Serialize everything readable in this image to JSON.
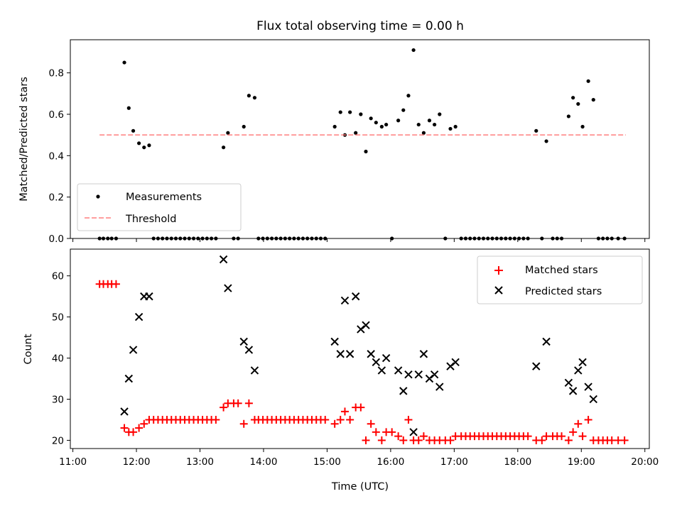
{
  "figure": {
    "title": "Flux total observing time = 0.00 h",
    "xlabel": "Time (UTC)",
    "x_ticks": [
      "11:00",
      "12:00",
      "13:00",
      "14:00",
      "15:00",
      "16:00",
      "17:00",
      "18:00",
      "19:00",
      "20:00"
    ]
  },
  "chart_data": [
    {
      "type": "scatter",
      "name": "top",
      "ylabel": "Matched/Predicted stars",
      "xlim": [
        10.96,
        20.07
      ],
      "ylim": [
        0.0,
        0.96
      ],
      "y_ticks": [
        "0.0",
        "0.2",
        "0.4",
        "0.6",
        "0.8"
      ],
      "y_tick_values": [
        0.0,
        0.2,
        0.4,
        0.6,
        0.8
      ],
      "grid": false,
      "legend": {
        "position": "lower-left",
        "entries": [
          "Measurements",
          "Threshold"
        ]
      },
      "threshold": {
        "name": "Threshold",
        "value": 0.5,
        "x": [
          11.42,
          19.7
        ],
        "color": "#ff7f7f"
      },
      "series": [
        {
          "name": "Measurements",
          "color": "#000000",
          "points": [
            [
              11.42,
              0.0
            ],
            [
              11.48,
              0.0
            ],
            [
              11.55,
              0.0
            ],
            [
              11.61,
              0.0
            ],
            [
              11.68,
              0.0
            ],
            [
              11.81,
              0.85
            ],
            [
              11.88,
              0.63
            ],
            [
              11.95,
              0.52
            ],
            [
              12.04,
              0.46
            ],
            [
              12.12,
              0.44
            ],
            [
              12.2,
              0.45
            ],
            [
              12.27,
              0.0
            ],
            [
              12.34,
              0.0
            ],
            [
              12.41,
              0.0
            ],
            [
              12.48,
              0.0
            ],
            [
              12.55,
              0.0
            ],
            [
              12.62,
              0.0
            ],
            [
              12.69,
              0.0
            ],
            [
              12.76,
              0.0
            ],
            [
              12.83,
              0.0
            ],
            [
              12.9,
              0.0
            ],
            [
              12.97,
              0.0
            ],
            [
              13.04,
              0.0
            ],
            [
              13.11,
              0.0
            ],
            [
              13.18,
              0.0
            ],
            [
              13.25,
              0.0
            ],
            [
              13.37,
              0.44
            ],
            [
              13.44,
              0.51
            ],
            [
              13.53,
              0.0
            ],
            [
              13.6,
              0.0
            ],
            [
              13.69,
              0.54
            ],
            [
              13.77,
              0.69
            ],
            [
              13.86,
              0.68
            ],
            [
              13.92,
              0.0
            ],
            [
              13.99,
              0.0
            ],
            [
              14.06,
              0.0
            ],
            [
              14.13,
              0.0
            ],
            [
              14.2,
              0.0
            ],
            [
              14.27,
              0.0
            ],
            [
              14.34,
              0.0
            ],
            [
              14.41,
              0.0
            ],
            [
              14.48,
              0.0
            ],
            [
              14.55,
              0.0
            ],
            [
              14.62,
              0.0
            ],
            [
              14.69,
              0.0
            ],
            [
              14.76,
              0.0
            ],
            [
              14.83,
              0.0
            ],
            [
              14.9,
              0.0
            ],
            [
              14.97,
              0.0
            ],
            [
              15.12,
              0.54
            ],
            [
              15.21,
              0.61
            ],
            [
              15.28,
              0.5
            ],
            [
              15.36,
              0.61
            ],
            [
              15.45,
              0.51
            ],
            [
              15.53,
              0.6
            ],
            [
              15.61,
              0.42
            ],
            [
              15.69,
              0.58
            ],
            [
              15.77,
              0.56
            ],
            [
              15.86,
              0.54
            ],
            [
              15.93,
              0.55
            ],
            [
              16.02,
              0.0
            ],
            [
              16.12,
              0.57
            ],
            [
              16.2,
              0.62
            ],
            [
              16.28,
              0.69
            ],
            [
              16.36,
              0.91
            ],
            [
              16.44,
              0.55
            ],
            [
              16.52,
              0.51
            ],
            [
              16.61,
              0.57
            ],
            [
              16.69,
              0.55
            ],
            [
              16.77,
              0.6
            ],
            [
              16.86,
              0.0
            ],
            [
              16.94,
              0.53
            ],
            [
              17.02,
              0.54
            ],
            [
              17.11,
              0.0
            ],
            [
              17.18,
              0.0
            ],
            [
              17.25,
              0.0
            ],
            [
              17.32,
              0.0
            ],
            [
              17.39,
              0.0
            ],
            [
              17.46,
              0.0
            ],
            [
              17.53,
              0.0
            ],
            [
              17.6,
              0.0
            ],
            [
              17.67,
              0.0
            ],
            [
              17.74,
              0.0
            ],
            [
              17.81,
              0.0
            ],
            [
              17.88,
              0.0
            ],
            [
              17.95,
              0.0
            ],
            [
              18.02,
              0.0
            ],
            [
              18.09,
              0.0
            ],
            [
              18.16,
              0.0
            ],
            [
              18.29,
              0.52
            ],
            [
              18.38,
              0.0
            ],
            [
              18.45,
              0.47
            ],
            [
              18.55,
              0.0
            ],
            [
              18.62,
              0.0
            ],
            [
              18.69,
              0.0
            ],
            [
              18.8,
              0.59
            ],
            [
              18.87,
              0.68
            ],
            [
              18.95,
              0.65
            ],
            [
              19.02,
              0.54
            ],
            [
              19.11,
              0.76
            ],
            [
              19.19,
              0.67
            ],
            [
              19.27,
              0.0
            ],
            [
              19.34,
              0.0
            ],
            [
              19.41,
              0.0
            ],
            [
              19.48,
              0.0
            ],
            [
              19.58,
              0.0
            ],
            [
              19.68,
              0.0
            ]
          ]
        }
      ]
    },
    {
      "type": "scatter",
      "name": "bottom",
      "ylabel": "Count",
      "xlim": [
        10.96,
        20.07
      ],
      "ylim": [
        18.0,
        66.5
      ],
      "y_ticks": [
        "20",
        "30",
        "40",
        "50",
        "60"
      ],
      "y_tick_values": [
        20,
        30,
        40,
        50,
        60
      ],
      "grid": false,
      "legend": {
        "position": "upper-right",
        "entries": [
          "Matched stars",
          "Predicted stars"
        ]
      },
      "series": [
        {
          "name": "Matched stars",
          "marker": "plus",
          "color": "#ff0000",
          "points": [
            [
              11.42,
              58
            ],
            [
              11.48,
              58
            ],
            [
              11.55,
              58
            ],
            [
              11.61,
              58
            ],
            [
              11.68,
              58
            ],
            [
              11.81,
              23
            ],
            [
              11.88,
              22
            ],
            [
              11.95,
              22
            ],
            [
              12.04,
              23
            ],
            [
              12.12,
              24
            ],
            [
              12.2,
              25
            ],
            [
              12.27,
              25
            ],
            [
              12.34,
              25
            ],
            [
              12.41,
              25
            ],
            [
              12.48,
              25
            ],
            [
              12.55,
              25
            ],
            [
              12.62,
              25
            ],
            [
              12.69,
              25
            ],
            [
              12.76,
              25
            ],
            [
              12.83,
              25
            ],
            [
              12.9,
              25
            ],
            [
              12.97,
              25
            ],
            [
              13.04,
              25
            ],
            [
              13.11,
              25
            ],
            [
              13.18,
              25
            ],
            [
              13.25,
              25
            ],
            [
              13.37,
              28
            ],
            [
              13.44,
              29
            ],
            [
              13.53,
              29
            ],
            [
              13.6,
              29
            ],
            [
              13.69,
              24
            ],
            [
              13.77,
              29
            ],
            [
              13.86,
              25
            ],
            [
              13.92,
              25
            ],
            [
              13.99,
              25
            ],
            [
              14.06,
              25
            ],
            [
              14.13,
              25
            ],
            [
              14.2,
              25
            ],
            [
              14.27,
              25
            ],
            [
              14.34,
              25
            ],
            [
              14.41,
              25
            ],
            [
              14.48,
              25
            ],
            [
              14.55,
              25
            ],
            [
              14.62,
              25
            ],
            [
              14.69,
              25
            ],
            [
              14.76,
              25
            ],
            [
              14.83,
              25
            ],
            [
              14.9,
              25
            ],
            [
              14.97,
              25
            ],
            [
              15.12,
              24
            ],
            [
              15.21,
              25
            ],
            [
              15.28,
              27
            ],
            [
              15.36,
              25
            ],
            [
              15.45,
              28
            ],
            [
              15.53,
              28
            ],
            [
              15.61,
              20
            ],
            [
              15.69,
              24
            ],
            [
              15.77,
              22
            ],
            [
              15.86,
              20
            ],
            [
              15.93,
              22
            ],
            [
              16.02,
              22
            ],
            [
              16.12,
              21
            ],
            [
              16.2,
              20
            ],
            [
              16.28,
              25
            ],
            [
              16.36,
              20
            ],
            [
              16.44,
              20
            ],
            [
              16.52,
              21
            ],
            [
              16.61,
              20
            ],
            [
              16.69,
              20
            ],
            [
              16.77,
              20
            ],
            [
              16.86,
              20
            ],
            [
              16.94,
              20
            ],
            [
              17.02,
              21
            ],
            [
              17.11,
              21
            ],
            [
              17.18,
              21
            ],
            [
              17.25,
              21
            ],
            [
              17.32,
              21
            ],
            [
              17.39,
              21
            ],
            [
              17.46,
              21
            ],
            [
              17.53,
              21
            ],
            [
              17.6,
              21
            ],
            [
              17.67,
              21
            ],
            [
              17.74,
              21
            ],
            [
              17.81,
              21
            ],
            [
              17.88,
              21
            ],
            [
              17.95,
              21
            ],
            [
              18.02,
              21
            ],
            [
              18.09,
              21
            ],
            [
              18.16,
              21
            ],
            [
              18.29,
              20
            ],
            [
              18.38,
              20
            ],
            [
              18.45,
              21
            ],
            [
              18.55,
              21
            ],
            [
              18.62,
              21
            ],
            [
              18.69,
              21
            ],
            [
              18.8,
              20
            ],
            [
              18.87,
              22
            ],
            [
              18.95,
              24
            ],
            [
              19.02,
              21
            ],
            [
              19.11,
              25
            ],
            [
              19.19,
              20
            ],
            [
              19.27,
              20
            ],
            [
              19.34,
              20
            ],
            [
              19.41,
              20
            ],
            [
              19.48,
              20
            ],
            [
              19.58,
              20
            ],
            [
              19.68,
              20
            ]
          ]
        },
        {
          "name": "Predicted stars",
          "marker": "x",
          "color": "#000000",
          "points": [
            [
              11.81,
              27
            ],
            [
              11.88,
              35
            ],
            [
              11.95,
              42
            ],
            [
              12.04,
              50
            ],
            [
              12.12,
              55
            ],
            [
              12.2,
              55
            ],
            [
              13.37,
              64
            ],
            [
              13.44,
              57
            ],
            [
              13.69,
              44
            ],
            [
              13.77,
              42
            ],
            [
              13.86,
              37
            ],
            [
              15.12,
              44
            ],
            [
              15.21,
              41
            ],
            [
              15.28,
              54
            ],
            [
              15.36,
              41
            ],
            [
              15.45,
              55
            ],
            [
              15.53,
              47
            ],
            [
              15.61,
              48
            ],
            [
              15.69,
              41
            ],
            [
              15.77,
              39
            ],
            [
              15.86,
              37
            ],
            [
              15.93,
              40
            ],
            [
              16.12,
              37
            ],
            [
              16.2,
              32
            ],
            [
              16.28,
              36
            ],
            [
              16.36,
              22
            ],
            [
              16.44,
              36
            ],
            [
              16.52,
              41
            ],
            [
              16.61,
              35
            ],
            [
              16.69,
              36
            ],
            [
              16.77,
              33
            ],
            [
              16.94,
              38
            ],
            [
              17.02,
              39
            ],
            [
              18.29,
              38
            ],
            [
              18.45,
              44
            ],
            [
              18.8,
              34
            ],
            [
              18.87,
              32
            ],
            [
              18.95,
              37
            ],
            [
              19.02,
              39
            ],
            [
              19.11,
              33
            ],
            [
              19.19,
              30
            ]
          ]
        }
      ]
    }
  ]
}
